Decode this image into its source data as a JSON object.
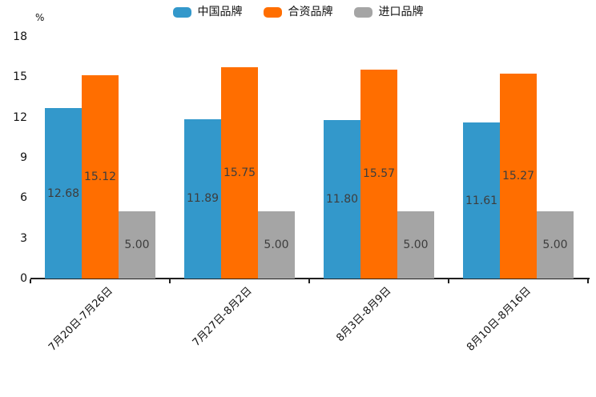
{
  "legend": [
    {
      "label": "中国品牌",
      "color": "#3398cb"
    },
    {
      "label": "合资品牌",
      "color": "#ff6e00"
    },
    {
      "label": "进口品牌",
      "color": "#a5a5a5"
    }
  ],
  "chart_data": {
    "type": "bar",
    "categories": [
      "7月20日-7月26日",
      "7月27日-8月2日",
      "8月3日-8月9日",
      "8月10日-8月16日"
    ],
    "series": [
      {
        "name": "中国品牌",
        "color": "#3398cb",
        "values": [
          12.68,
          11.89,
          11.8,
          11.61
        ]
      },
      {
        "name": "合资品牌",
        "color": "#ff6e00",
        "values": [
          15.12,
          15.75,
          15.57,
          15.27
        ]
      },
      {
        "name": "进口品牌",
        "color": "#a5a5a5",
        "values": [
          5.0,
          5.0,
          5.0,
          5.0
        ]
      }
    ],
    "title": "",
    "xlabel": "",
    "ylabel": "%",
    "yticks": [
      0,
      3,
      6,
      9,
      12,
      15,
      18
    ],
    "ylim": [
      0,
      18
    ],
    "grid": false,
    "legend_position": "top",
    "value_labels": true,
    "value_label_decimals": 2
  },
  "colors": {
    "background": "#ffffff",
    "axis": "#1f1f1f",
    "value_label_text": "#3d3d3d"
  }
}
